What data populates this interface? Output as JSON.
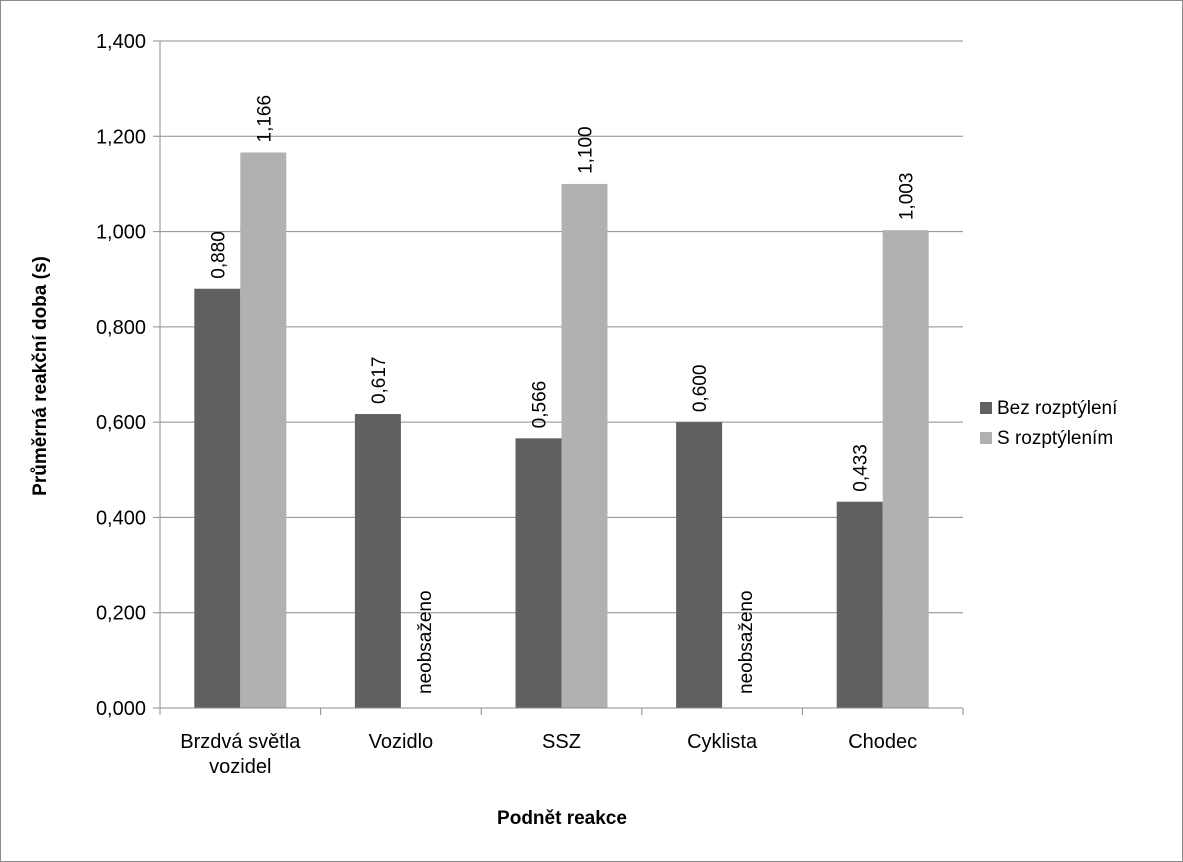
{
  "chart_data": {
    "type": "bar",
    "xlabel": "Podnět reakce",
    "ylabel": "Průměrná reakční doba (s)",
    "ylim": [
      0,
      1.4
    ],
    "ytick_step": 0.2,
    "ytick_labels": [
      "0,000",
      "0,200",
      "0,400",
      "0,600",
      "0,800",
      "1,000",
      "1,200",
      "1,400"
    ],
    "grid": true,
    "legend_position": "right",
    "categories": [
      [
        "Brzdvá světla",
        "vozidel"
      ],
      [
        "Vozidlo"
      ],
      [
        "SSZ"
      ],
      [
        "Cyklista"
      ],
      [
        "Chodec"
      ]
    ],
    "series": [
      {
        "name": "Bez rozptýlení",
        "color": "#606060",
        "values": [
          0.88,
          0.617,
          0.566,
          0.6,
          0.433
        ],
        "labels": [
          "0,880",
          "0,617",
          "0,566",
          "0,600",
          "0,433"
        ]
      },
      {
        "name": "S rozptýlením",
        "color": "#b1b1b1",
        "values": [
          1.166,
          null,
          1.1,
          null,
          1.003
        ],
        "labels": [
          "1,166",
          "neobsaženo",
          "1,100",
          "neobsaženo",
          "1,003"
        ]
      }
    ]
  }
}
